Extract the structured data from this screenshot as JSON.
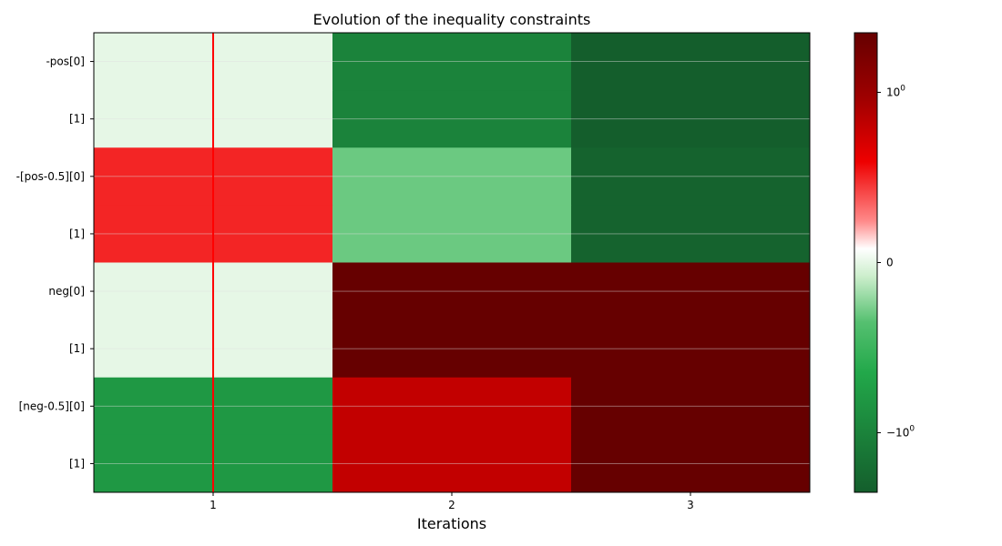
{
  "chart_data": {
    "type": "heatmap",
    "title": "Evolution of the inequality constraints",
    "xlabel": "Iterations",
    "ylabel": "",
    "x_categories": [
      "1",
      "2",
      "3"
    ],
    "y_categories": [
      "-pos[0]",
      "[1]",
      "-[pos-0.5][0]",
      "[1]",
      "neg[0]",
      "[1]",
      "[neg-0.5][0]",
      "[1]"
    ],
    "rows": [
      {
        "cells": [
          0.0,
          -1.0,
          -1.5
        ]
      },
      {
        "cells": [
          0.0,
          -1.0,
          -1.5
        ]
      },
      {
        "cells": [
          0.5,
          -0.3,
          -1.3
        ]
      },
      {
        "cells": [
          0.5,
          -0.3,
          -1.3
        ]
      },
      {
        "cells": [
          0.0,
          1.5,
          2.0
        ]
      },
      {
        "cells": [
          0.0,
          1.5,
          2.0
        ]
      },
      {
        "cells": [
          -0.8,
          0.8,
          1.8
        ]
      },
      {
        "cells": [
          -0.8,
          0.8,
          1.8
        ]
      }
    ],
    "colorbar": {
      "ticks": [
        "10^0",
        "0",
        "−10^0"
      ],
      "tick_values": [
        1.0,
        0.0,
        -1.0
      ],
      "range": [
        -1.35,
        1.35
      ],
      "colormap": "green-white-red"
    },
    "highlight_iteration": "1",
    "colors": {
      "highlight_line": "#ff0000",
      "grid": "#e0e0e0"
    }
  }
}
